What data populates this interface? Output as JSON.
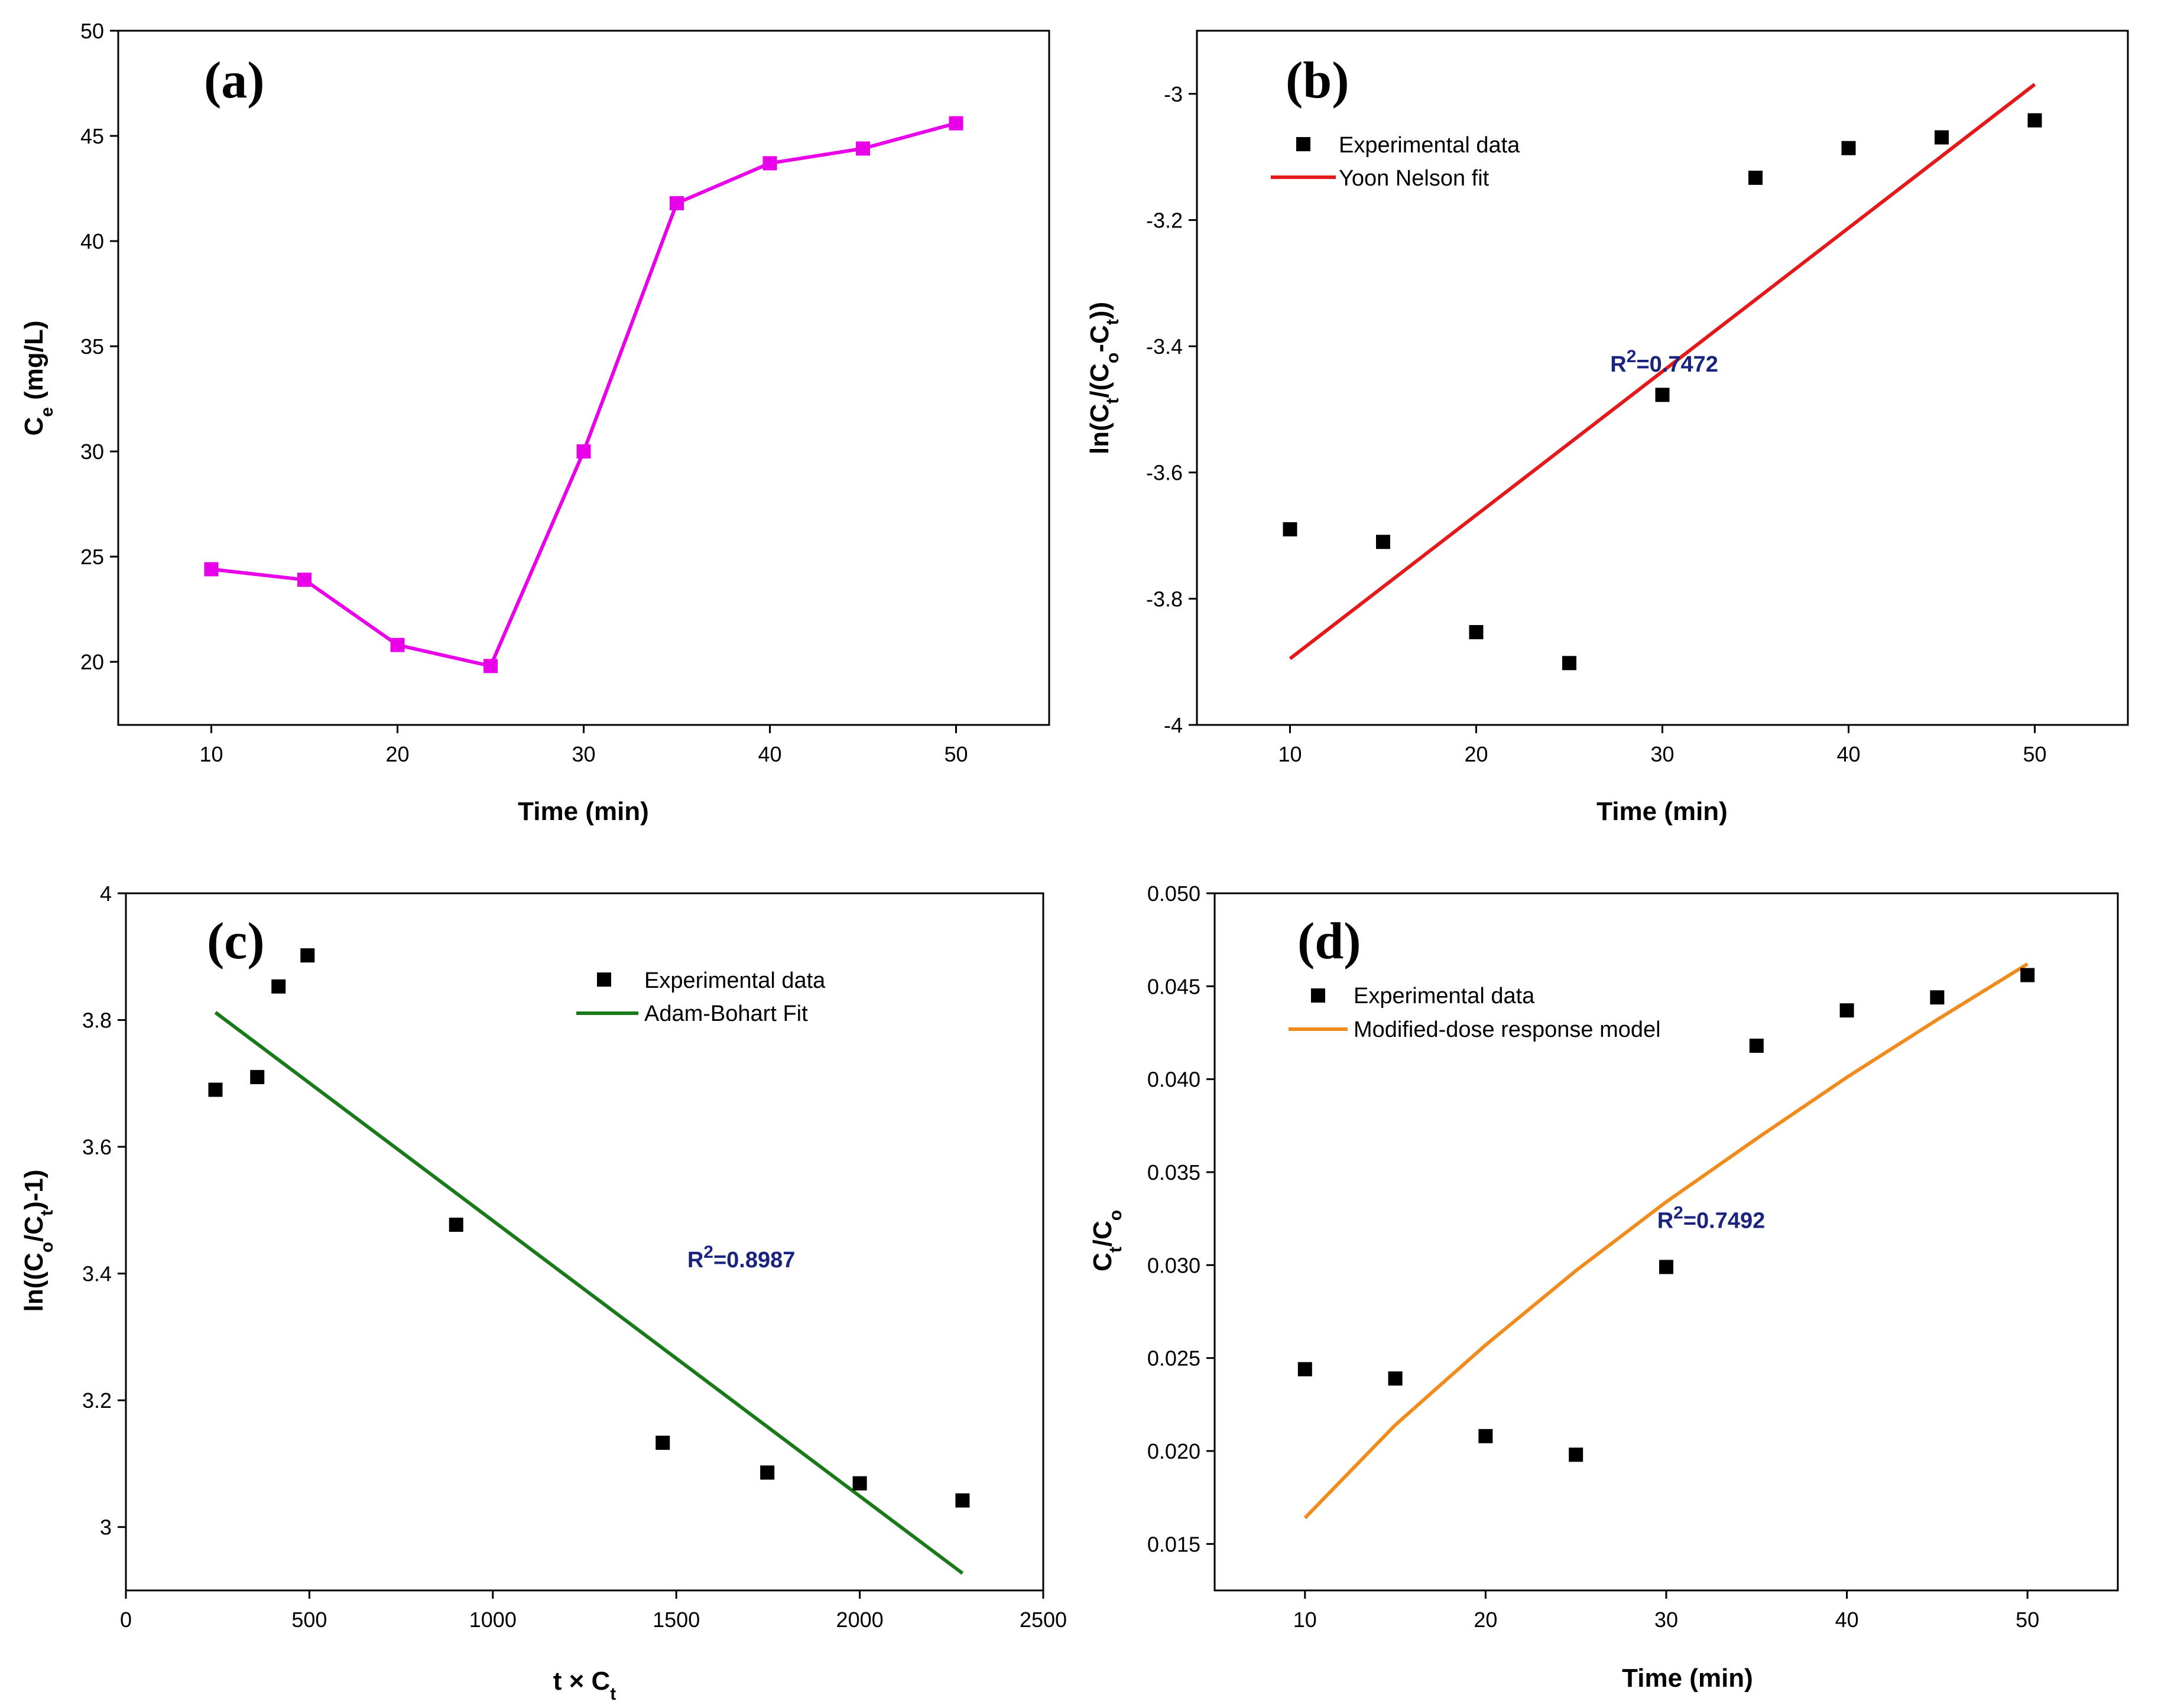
{
  "chart_data": [
    {
      "panel": "(a)",
      "type": "line",
      "xlabel": "Time (min)",
      "ylabel_parts": [
        {
          "t": "C"
        },
        {
          "t": "e",
          "sub": true
        },
        {
          "t": " (mg/L)"
        }
      ],
      "xlim": [
        5,
        55
      ],
      "ylim": [
        17,
        50
      ],
      "xticks": [
        10,
        20,
        30,
        40,
        50
      ],
      "yticks": [
        20,
        25,
        30,
        35,
        40,
        45,
        50
      ],
      "series": [
        {
          "name": "Ce",
          "color": "#e800e8",
          "marker": "square",
          "line": true,
          "x": [
            10,
            15,
            20,
            25,
            30,
            35,
            40,
            45,
            50
          ],
          "y": [
            24.4,
            23.9,
            20.8,
            19.8,
            30.0,
            41.8,
            43.7,
            44.4,
            45.6
          ]
        }
      ]
    },
    {
      "panel": "(b)",
      "type": "scatter",
      "xlabel": "Time (min)",
      "ylabel_parts": [
        {
          "t": "ln(C"
        },
        {
          "t": "t",
          "sub": true
        },
        {
          "t": "/(C"
        },
        {
          "t": "o",
          "sub": true
        },
        {
          "t": "-C"
        },
        {
          "t": "t",
          "sub": true
        },
        {
          "t": "))"
        }
      ],
      "xlim": [
        5,
        55
      ],
      "ylim": [
        -4.0,
        -2.9
      ],
      "xticks": [
        10,
        20,
        30,
        40,
        50
      ],
      "yticks": [
        -4.0,
        -3.8,
        -3.6,
        -3.4,
        -3.2,
        -3.0
      ],
      "series": [
        {
          "name": "Experimental data",
          "color": "#000000",
          "marker": "square",
          "line": false,
          "x": [
            10,
            15,
            20,
            25,
            30,
            35,
            40,
            45,
            50
          ],
          "y": [
            -3.69,
            -3.71,
            -3.853,
            -3.902,
            -3.477,
            -3.133,
            -3.086,
            -3.069,
            -3.042
          ]
        },
        {
          "name": "Yoon Nelson fit",
          "color": "#e31a1c",
          "marker": "none",
          "line": true,
          "x": [
            10,
            50
          ],
          "y": [
            -3.895,
            -2.985
          ]
        }
      ],
      "annotation": {
        "text": "R",
        "sup": "2",
        "rest": "=0.7472",
        "x": 27.2,
        "y": -3.44
      }
    },
    {
      "panel": "(c)",
      "type": "scatter",
      "xlabel_parts": [
        {
          "t": "t × C"
        },
        {
          "t": "t",
          "sub": true
        }
      ],
      "ylabel_parts": [
        {
          "t": "ln((C"
        },
        {
          "t": "o",
          "sub": true
        },
        {
          "t": "/C"
        },
        {
          "t": "t",
          "sub": true
        },
        {
          "t": ")-1)"
        }
      ],
      "xlim": [
        0,
        2500
      ],
      "ylim": [
        2.9,
        4.0
      ],
      "xticks": [
        0,
        500,
        1000,
        1500,
        2000,
        2500
      ],
      "yticks": [
        3.0,
        3.2,
        3.4,
        3.6,
        3.8,
        4.0
      ],
      "series": [
        {
          "name": "Experimental data",
          "color": "#000000",
          "marker": "square",
          "line": false,
          "x": [
            244,
            358,
            416,
            495,
            900,
            1463,
            1748,
            2000,
            2280
          ],
          "y": [
            3.69,
            3.71,
            3.853,
            3.902,
            3.477,
            3.133,
            3.086,
            3.069,
            3.042
          ]
        },
        {
          "name": "Adam-Bohart Fit",
          "color": "#1a7a1a",
          "marker": "none",
          "line": true,
          "x": [
            244,
            2280
          ],
          "y": [
            3.812,
            2.927
          ]
        }
      ],
      "annotation": {
        "text": "R",
        "sup": "2",
        "rest": "=0.8987",
        "x": 1530,
        "y": 3.41
      }
    },
    {
      "panel": "(d)",
      "type": "scatter",
      "xlabel": "Time (min)",
      "ylabel_parts": [
        {
          "t": "C"
        },
        {
          "t": "t",
          "sub": true
        },
        {
          "t": "/C"
        },
        {
          "t": "o",
          "sub": true
        }
      ],
      "xlim": [
        5,
        55
      ],
      "ylim": [
        0.0125,
        0.05
      ],
      "xticks": [
        10,
        20,
        30,
        40,
        50
      ],
      "yticks": [
        0.015,
        0.02,
        0.025,
        0.03,
        0.035,
        0.04,
        0.045,
        0.05
      ],
      "ytick_labels": [
        "0.015",
        "0.020",
        "0.025",
        "0.030",
        "0.035",
        "0.040",
        "0.045",
        "0.050"
      ],
      "series": [
        {
          "name": "Experimental data",
          "color": "#000000",
          "marker": "square",
          "line": false,
          "x": [
            10,
            15,
            20,
            25,
            30,
            35,
            40,
            45,
            50
          ],
          "y": [
            0.0244,
            0.0239,
            0.0208,
            0.0198,
            0.0299,
            0.0418,
            0.0437,
            0.0444,
            0.0456
          ]
        },
        {
          "name": "Modified-dose response model",
          "color": "#f08c1e",
          "marker": "none",
          "line": true,
          "x": [
            10,
            15,
            20,
            25,
            30,
            35,
            40,
            45,
            50
          ],
          "y": [
            0.0164,
            0.0214,
            0.0257,
            0.0297,
            0.0334,
            0.0368,
            0.0401,
            0.0432,
            0.0462
          ]
        }
      ],
      "annotation": {
        "text": "R",
        "sup": "2",
        "rest": "=0.7492",
        "x": 29.5,
        "y": 0.032
      }
    }
  ]
}
